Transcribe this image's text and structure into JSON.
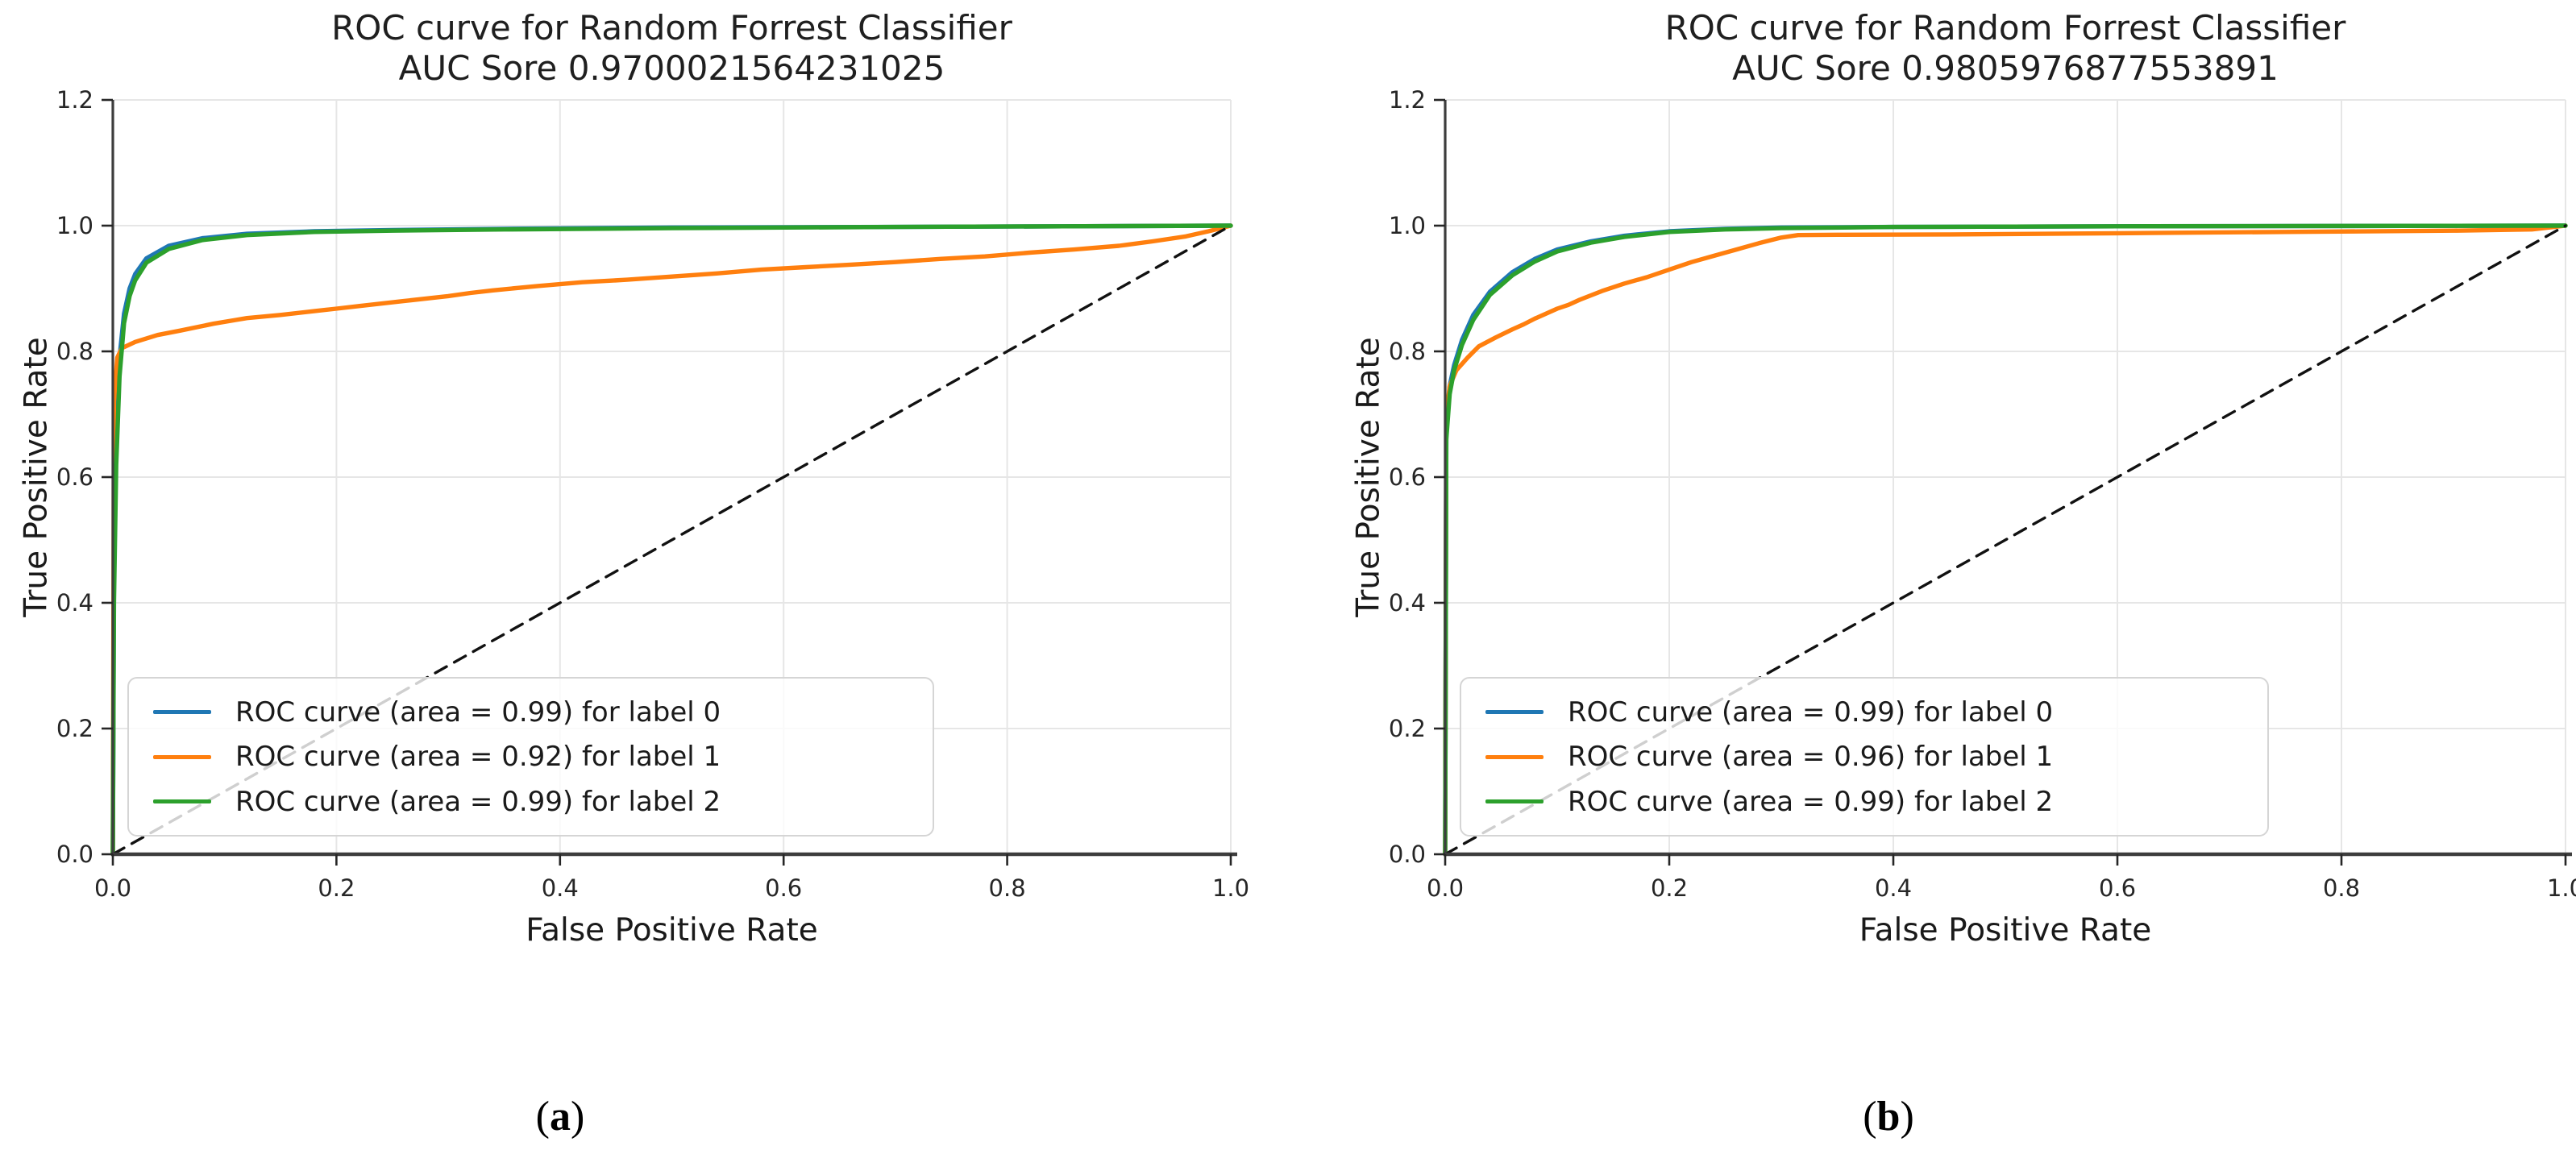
{
  "figure": {
    "background": "#ffffff"
  },
  "colors": {
    "label0": "#1f77b4",
    "label1": "#ff7f0e",
    "label2": "#2ca02c",
    "diagonal": "#111111",
    "grid": "#e6e6e6",
    "spine": "#3d3d3d",
    "tick_text": "#262626"
  },
  "chart_data": [
    {
      "type": "line",
      "panel": "a",
      "title": "ROC curve for Random Forrest Classifier",
      "subtitle": "AUC Sore 0.9700021564231025",
      "xlabel": "False Positive Rate",
      "ylabel": "True Positive Rate",
      "xlim": [
        0.0,
        1.0
      ],
      "ylim": [
        0.0,
        1.2
      ],
      "xticks": [
        "0.0",
        "0.2",
        "0.4",
        "0.6",
        "0.8",
        "1.0"
      ],
      "yticks": [
        "0.0",
        "0.2",
        "0.4",
        "0.6",
        "0.8",
        "1.0",
        "1.2"
      ],
      "grid": true,
      "legend_position": "lower left",
      "caption": {
        "open": "(",
        "letter": "a",
        "close": ")"
      },
      "series": [
        {
          "name": "ROC curve (area = 0.99) for label 0",
          "color_key": "label0",
          "dash": false,
          "in_legend": true,
          "points": [
            [
              0,
              0
            ],
            [
              0.001,
              0.45
            ],
            [
              0.003,
              0.66
            ],
            [
              0.006,
              0.79
            ],
            [
              0.01,
              0.86
            ],
            [
              0.015,
              0.9
            ],
            [
              0.02,
              0.923
            ],
            [
              0.03,
              0.948
            ],
            [
              0.05,
              0.968
            ],
            [
              0.08,
              0.98
            ],
            [
              0.12,
              0.987
            ],
            [
              0.18,
              0.991
            ],
            [
              0.25,
              0.993
            ],
            [
              0.35,
              0.995
            ],
            [
              0.5,
              0.997
            ],
            [
              0.7,
              0.998
            ],
            [
              0.85,
              0.999
            ],
            [
              1,
              1
            ]
          ]
        },
        {
          "name": "ROC curve (area = 0.92) for label 1",
          "color_key": "label1",
          "dash": false,
          "in_legend": true,
          "points": [
            [
              0,
              0
            ],
            [
              0.001,
              0.72
            ],
            [
              0.004,
              0.79
            ],
            [
              0.008,
              0.805
            ],
            [
              0.02,
              0.815
            ],
            [
              0.04,
              0.826
            ],
            [
              0.06,
              0.833
            ],
            [
              0.09,
              0.844
            ],
            [
              0.11,
              0.85
            ],
            [
              0.12,
              0.853
            ],
            [
              0.15,
              0.858
            ],
            [
              0.18,
              0.864
            ],
            [
              0.2,
              0.868
            ],
            [
              0.22,
              0.872
            ],
            [
              0.26,
              0.88
            ],
            [
              0.3,
              0.888
            ],
            [
              0.32,
              0.893
            ],
            [
              0.34,
              0.897
            ],
            [
              0.38,
              0.904
            ],
            [
              0.42,
              0.91
            ],
            [
              0.46,
              0.914
            ],
            [
              0.5,
              0.919
            ],
            [
              0.54,
              0.924
            ],
            [
              0.58,
              0.93
            ],
            [
              0.62,
              0.934
            ],
            [
              0.66,
              0.938
            ],
            [
              0.7,
              0.942
            ],
            [
              0.74,
              0.947
            ],
            [
              0.78,
              0.951
            ],
            [
              0.82,
              0.957
            ],
            [
              0.86,
              0.962
            ],
            [
              0.9,
              0.968
            ],
            [
              0.93,
              0.975
            ],
            [
              0.96,
              0.983
            ],
            [
              0.98,
              0.991
            ],
            [
              1,
              1
            ]
          ]
        },
        {
          "name": "ROC curve (area = 0.99) for label 2",
          "color_key": "label2",
          "dash": false,
          "in_legend": true,
          "points": [
            [
              0,
              0
            ],
            [
              0.001,
              0.4
            ],
            [
              0.003,
              0.62
            ],
            [
              0.006,
              0.76
            ],
            [
              0.01,
              0.845
            ],
            [
              0.015,
              0.888
            ],
            [
              0.02,
              0.913
            ],
            [
              0.03,
              0.941
            ],
            [
              0.05,
              0.963
            ],
            [
              0.08,
              0.977
            ],
            [
              0.12,
              0.985
            ],
            [
              0.18,
              0.99
            ],
            [
              0.25,
              0.992
            ],
            [
              0.35,
              0.994
            ],
            [
              0.5,
              0.996
            ],
            [
              0.7,
              0.998
            ],
            [
              0.85,
              0.999
            ],
            [
              1,
              1
            ]
          ]
        },
        {
          "name": "",
          "color_key": "diagonal",
          "dash": true,
          "in_legend": false,
          "points": [
            [
              0,
              0
            ],
            [
              1,
              1
            ]
          ]
        }
      ]
    },
    {
      "type": "line",
      "panel": "b",
      "title": "ROC curve for Random Forrest Classifier",
      "subtitle": "AUC Sore 0.9805976877553891",
      "xlabel": "False Positive Rate",
      "ylabel": "True Positive Rate",
      "xlim": [
        0.0,
        1.0
      ],
      "ylim": [
        0.0,
        1.2
      ],
      "xticks": [
        "0.0",
        "0.2",
        "0.4",
        "0.6",
        "0.8",
        "1.0"
      ],
      "yticks": [
        "0.0",
        "0.2",
        "0.4",
        "0.6",
        "0.8",
        "1.0",
        "1.2"
      ],
      "grid": true,
      "legend_position": "lower left",
      "caption": {
        "open": "(",
        "letter": "b",
        "close": ")"
      },
      "series": [
        {
          "name": "ROC curve (area = 0.99) for label 0",
          "color_key": "label0",
          "dash": false,
          "in_legend": true,
          "points": [
            [
              0,
              0
            ],
            [
              0.001,
              0.68
            ],
            [
              0.004,
              0.745
            ],
            [
              0.008,
              0.778
            ],
            [
              0.015,
              0.818
            ],
            [
              0.025,
              0.858
            ],
            [
              0.04,
              0.895
            ],
            [
              0.06,
              0.926
            ],
            [
              0.08,
              0.947
            ],
            [
              0.1,
              0.962
            ],
            [
              0.13,
              0.975
            ],
            [
              0.16,
              0.984
            ],
            [
              0.2,
              0.991
            ],
            [
              0.25,
              0.995
            ],
            [
              0.3,
              0.997
            ],
            [
              0.4,
              0.998
            ],
            [
              0.6,
              0.999
            ],
            [
              1,
              1
            ]
          ]
        },
        {
          "name": "ROC curve (area = 0.96) for label 1",
          "color_key": "label1",
          "dash": false,
          "in_legend": true,
          "points": [
            [
              0,
              0
            ],
            [
              0.001,
              0.7
            ],
            [
              0.004,
              0.745
            ],
            [
              0.01,
              0.77
            ],
            [
              0.02,
              0.79
            ],
            [
              0.03,
              0.808
            ],
            [
              0.045,
              0.822
            ],
            [
              0.06,
              0.835
            ],
            [
              0.07,
              0.843
            ],
            [
              0.08,
              0.852
            ],
            [
              0.1,
              0.868
            ],
            [
              0.11,
              0.874
            ],
            [
              0.12,
              0.882
            ],
            [
              0.14,
              0.896
            ],
            [
              0.16,
              0.908
            ],
            [
              0.18,
              0.918
            ],
            [
              0.2,
              0.93
            ],
            [
              0.22,
              0.942
            ],
            [
              0.24,
              0.952
            ],
            [
              0.26,
              0.962
            ],
            [
              0.28,
              0.972
            ],
            [
              0.3,
              0.981
            ],
            [
              0.315,
              0.985
            ],
            [
              0.35,
              0.9855
            ],
            [
              0.45,
              0.986
            ],
            [
              0.6,
              0.988
            ],
            [
              0.75,
              0.99
            ],
            [
              0.9,
              0.992
            ],
            [
              0.97,
              0.994
            ],
            [
              1,
              1
            ]
          ]
        },
        {
          "name": "ROC curve (area = 0.99) for label 2",
          "color_key": "label2",
          "dash": false,
          "in_legend": true,
          "points": [
            [
              0,
              0
            ],
            [
              0.001,
              0.66
            ],
            [
              0.004,
              0.732
            ],
            [
              0.008,
              0.77
            ],
            [
              0.015,
              0.81
            ],
            [
              0.025,
              0.85
            ],
            [
              0.04,
              0.89
            ],
            [
              0.06,
              0.921
            ],
            [
              0.08,
              0.943
            ],
            [
              0.1,
              0.959
            ],
            [
              0.13,
              0.973
            ],
            [
              0.16,
              0.982
            ],
            [
              0.2,
              0.99
            ],
            [
              0.25,
              0.994
            ],
            [
              0.3,
              0.996
            ],
            [
              0.4,
              0.998
            ],
            [
              0.6,
              0.999
            ],
            [
              1,
              1
            ]
          ]
        },
        {
          "name": "",
          "color_key": "diagonal",
          "dash": true,
          "in_legend": false,
          "points": [
            [
              0,
              0
            ],
            [
              1,
              1
            ]
          ]
        }
      ]
    }
  ]
}
